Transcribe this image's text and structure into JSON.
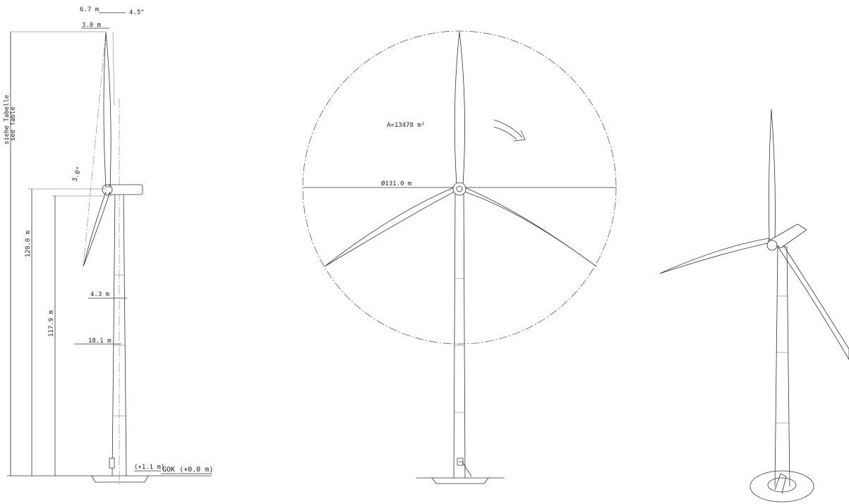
{
  "side_view": {
    "labels": {
      "rotor_offset": "6.7 m",
      "tilt_top": "4.5°",
      "blade_offset": "3.0 m",
      "total_height_de": "siehe Tabelle",
      "total_height_en": "see Table",
      "cone_angle": "5.0°",
      "hub_height": "120.0 m",
      "tower_height": "117.9 m",
      "tower_top_clearance": "4.3 m",
      "blade_clearance": "18.1 m",
      "foundation_level": "(+1.1 m)",
      "ground_level": "GOK (+0.0 m)"
    }
  },
  "front_view": {
    "labels": {
      "swept_area": "A=13478 m²",
      "rotor_diameter": "Ø131.0 m"
    }
  }
}
